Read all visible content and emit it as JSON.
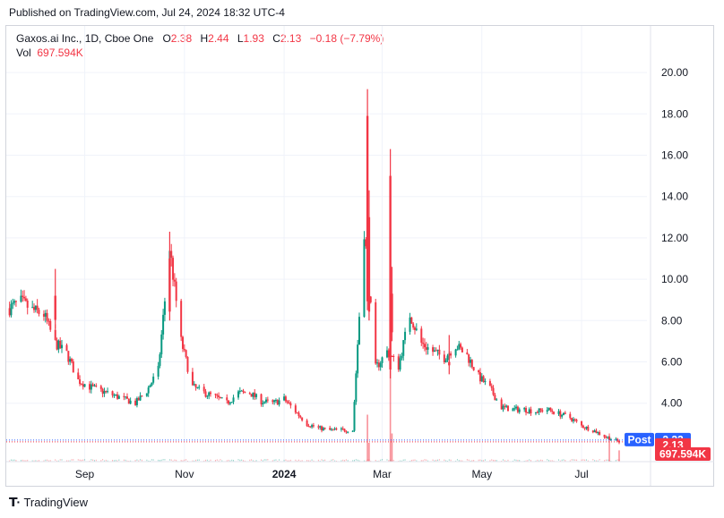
{
  "published": "Published on TradingView.com, Jul 24, 2024 18:32 UTC-4",
  "legend": {
    "symbol": "Gaxos.ai Inc., 1D, Cboe One",
    "o_label": "O",
    "o_val": "2.38",
    "h_label": "H",
    "h_val": "2.44",
    "l_label": "L",
    "l_val": "1.93",
    "c_label": "C",
    "c_val": "2.13",
    "change": "−0.18 (−7.79%)",
    "vol_label": "Vol",
    "vol_val": "697.594K"
  },
  "badges": {
    "post_label": "Post",
    "post_price": "2.22",
    "last_price": "2.13",
    "volume": "697.594K"
  },
  "footer": {
    "brand": "TradingView"
  },
  "colors": {
    "up": "#089981",
    "down": "#f23645",
    "post": "#2962ff",
    "grid": "#f0f3fa"
  },
  "chart_data": {
    "type": "candlestick",
    "y_ticks": [
      "4.00",
      "6.00",
      "8.00",
      "10.00",
      "12.00",
      "14.00",
      "16.00",
      "18.00",
      "20.00"
    ],
    "ylim": [
      1.0,
      21.0
    ],
    "x_ticks": [
      "Sep",
      "Nov",
      "2024",
      "Mar",
      "May",
      "Jul"
    ],
    "x_tick_dates": [
      "2023-09-01",
      "2023-11-01",
      "2024-01-01",
      "2024-03-01",
      "2024-05-01",
      "2024-07-01"
    ],
    "x_range": [
      "2023-07-15",
      "2024-08-10"
    ],
    "post_market_price": 2.22,
    "last_price": 2.13,
    "last_volume": "697.594K",
    "close_path": [
      [
        "2023-07-17",
        8.6
      ],
      [
        "2023-07-24",
        8.9
      ],
      [
        "2023-07-31",
        8.5
      ],
      [
        "2023-08-07",
        8.3
      ],
      [
        "2023-08-14",
        6.9
      ],
      [
        "2023-08-21",
        6.4
      ],
      [
        "2023-08-28",
        5.1
      ],
      [
        "2023-09-04",
        4.8
      ],
      [
        "2023-09-11",
        4.6
      ],
      [
        "2023-09-18",
        4.4
      ],
      [
        "2023-09-25",
        4.2
      ],
      [
        "2023-10-02",
        4.0
      ],
      [
        "2023-10-09",
        4.6
      ],
      [
        "2023-10-16",
        5.6
      ],
      [
        "2023-10-23",
        11.5
      ],
      [
        "2023-10-30",
        7.0
      ],
      [
        "2023-11-06",
        4.8
      ],
      [
        "2023-11-13",
        4.5
      ],
      [
        "2023-11-20",
        4.3
      ],
      [
        "2023-11-27",
        4.0
      ],
      [
        "2023-12-04",
        4.5
      ],
      [
        "2023-12-11",
        4.5
      ],
      [
        "2023-12-18",
        4.1
      ],
      [
        "2023-12-25",
        4.0
      ],
      [
        "2024-01-01",
        4.2
      ],
      [
        "2024-01-08",
        3.6
      ],
      [
        "2024-01-15",
        3.0
      ],
      [
        "2024-01-22",
        2.8
      ],
      [
        "2024-01-29",
        2.7
      ],
      [
        "2024-02-05",
        2.7
      ],
      [
        "2024-02-12",
        2.7
      ],
      [
        "2024-02-19",
        12.4
      ],
      [
        "2024-02-26",
        5.7
      ],
      [
        "2024-03-04",
        6.5
      ],
      [
        "2024-03-11",
        5.8
      ],
      [
        "2024-03-18",
        8.3
      ],
      [
        "2024-03-25",
        6.9
      ],
      [
        "2024-04-01",
        6.5
      ],
      [
        "2024-04-08",
        6.2
      ],
      [
        "2024-04-15",
        6.8
      ],
      [
        "2024-04-22",
        6.3
      ],
      [
        "2024-04-29",
        5.3
      ],
      [
        "2024-05-06",
        4.7
      ],
      [
        "2024-05-13",
        3.8
      ],
      [
        "2024-05-20",
        3.7
      ],
      [
        "2024-05-27",
        3.7
      ],
      [
        "2024-06-03",
        3.6
      ],
      [
        "2024-06-10",
        3.7
      ],
      [
        "2024-06-17",
        3.5
      ],
      [
        "2024-06-24",
        3.3
      ],
      [
        "2024-07-01",
        2.9
      ],
      [
        "2024-07-08",
        2.7
      ],
      [
        "2024-07-15",
        2.4
      ],
      [
        "2024-07-24",
        2.13
      ]
    ],
    "spikes": [
      {
        "date": "2023-08-14",
        "high": 10.5,
        "low": 7.6
      },
      {
        "date": "2023-10-23",
        "high": 12.3,
        "low": 8.0
      },
      {
        "date": "2024-02-21",
        "high": 19.2,
        "low": 8.5
      },
      {
        "date": "2024-02-22",
        "high": 14.3,
        "low": 8.0
      },
      {
        "date": "2024-03-06",
        "high": 16.3,
        "low": 5.2
      },
      {
        "date": "2024-03-07",
        "high": 10.6,
        "low": 7.0
      },
      {
        "date": "2024-04-11",
        "high": 7.3,
        "low": 5.4
      }
    ],
    "volume_spikes": [
      {
        "date": "2024-02-21",
        "rel": 0.5
      },
      {
        "date": "2024-02-22",
        "rel": 0.2
      },
      {
        "date": "2024-03-06",
        "rel": 1.0
      },
      {
        "date": "2024-03-07",
        "rel": 0.3
      },
      {
        "date": "2024-07-18",
        "rel": 0.3
      },
      {
        "date": "2024-07-24",
        "rel": 0.12
      }
    ]
  }
}
